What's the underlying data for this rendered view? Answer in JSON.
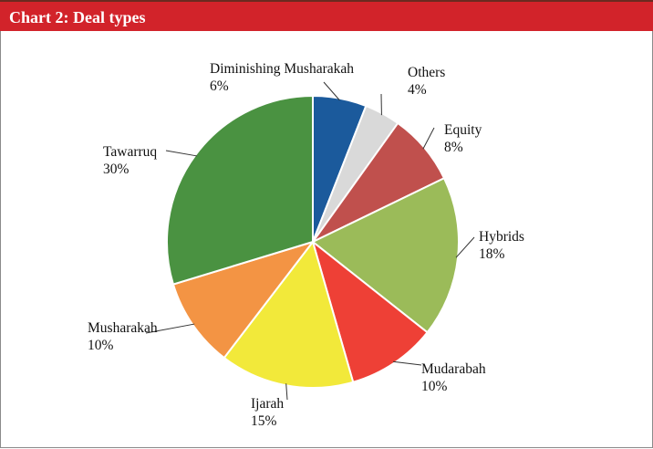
{
  "header": {
    "title": "Chart 2: Deal types"
  },
  "chart_data": {
    "type": "pie",
    "title": "Chart 2: Deal types",
    "slices": [
      {
        "label": "Diminishing Musharakah",
        "value": 6,
        "value_label": "6%",
        "color": "#1b5a9c"
      },
      {
        "label": "Others",
        "value": 4,
        "value_label": "4%",
        "color": "#d9d9d9"
      },
      {
        "label": "Equity",
        "value": 8,
        "value_label": "8%",
        "color": "#c0504d"
      },
      {
        "label": "Hybrids",
        "value": 18,
        "value_label": "18%",
        "color": "#9bbb59"
      },
      {
        "label": "Mudarabah",
        "value": 10,
        "value_label": "10%",
        "color": "#ee4036"
      },
      {
        "label": "Ijarah",
        "value": 15,
        "value_label": "15%",
        "color": "#f2e93a"
      },
      {
        "label": "Musharakah",
        "value": 10,
        "value_label": "10%",
        "color": "#f39444"
      },
      {
        "label": "Tawarruq",
        "value": 30,
        "value_label": "30%",
        "color": "#4a9241"
      }
    ]
  }
}
